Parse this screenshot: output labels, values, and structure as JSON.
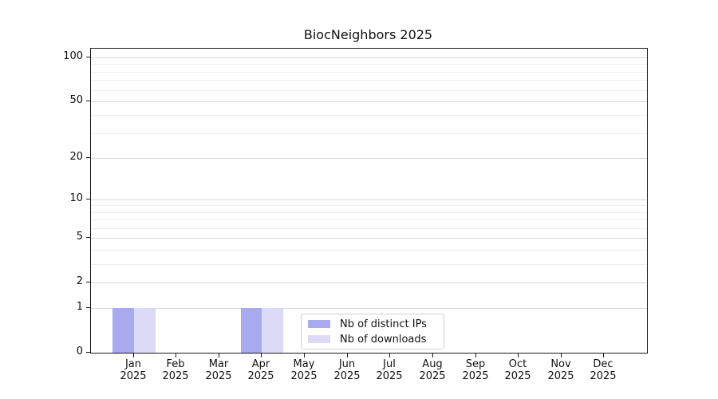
{
  "chart_data": {
    "type": "bar",
    "title": "BiocNeighbors 2025",
    "year_label": "2025",
    "categories": [
      "Jan",
      "Feb",
      "Mar",
      "Apr",
      "May",
      "Jun",
      "Jul",
      "Aug",
      "Sep",
      "Oct",
      "Nov",
      "Dec"
    ],
    "series": [
      {
        "name": "Nb of distinct IPs",
        "color": "#a9a9f0",
        "values": [
          1,
          0,
          0,
          1,
          0,
          0,
          0,
          0,
          0,
          0,
          0,
          0
        ]
      },
      {
        "name": "Nb of downloads",
        "color": "#dbdbf8",
        "values": [
          1,
          0,
          0,
          1,
          0,
          0,
          0,
          0,
          0,
          0,
          0,
          0
        ]
      }
    ],
    "yscale": "log1p",
    "ylim": [
      0,
      115
    ],
    "y_major_ticks": [
      0,
      1,
      2,
      5,
      10,
      20,
      50,
      100
    ],
    "y_minor_gridlines": [
      3,
      4,
      6,
      7,
      8,
      9,
      30,
      40,
      60,
      70,
      80,
      90
    ],
    "xlim_units": [
      -1,
      12
    ],
    "bar_width_units": 0.5,
    "grid": "horizontal-only",
    "legend_position": "lower center"
  },
  "colors": {
    "background": "#ffffff",
    "spine": "#1a1a1a",
    "text": "#111111",
    "major_grid": "#d6d6d6",
    "minor_grid": "#eeeeee",
    "legend_border": "#cfcfcf"
  }
}
